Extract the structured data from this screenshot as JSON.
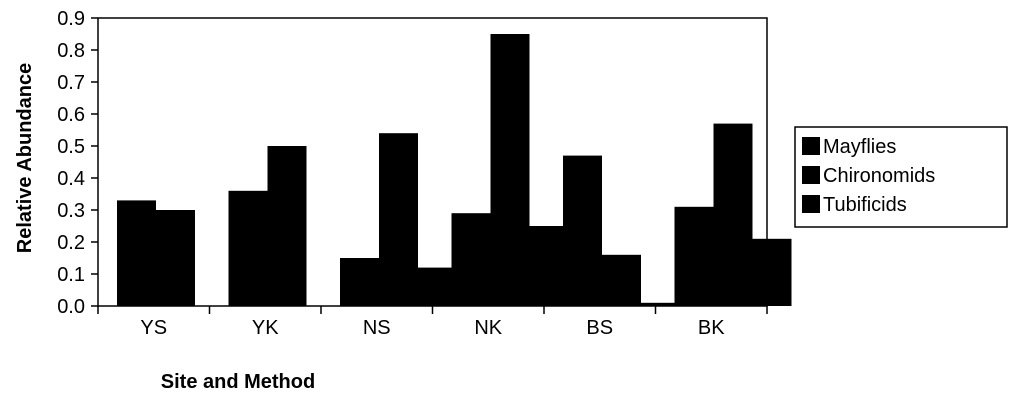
{
  "chart_data": {
    "type": "bar",
    "title": "",
    "xlabel": "Site and Method",
    "ylabel": "Relative Abundance",
    "ylim": [
      0,
      0.9
    ],
    "yticks": [
      "0.0",
      "0.1",
      "0.2",
      "0.3",
      "0.4",
      "0.5",
      "0.6",
      "0.7",
      "0.8",
      "0.9"
    ],
    "categories": [
      "YS",
      "YK",
      "NS",
      "NK",
      "BS",
      "BK"
    ],
    "series": [
      {
        "name": "Mayflies",
        "values": [
          0.33,
          0.36,
          0.15,
          0.29,
          0.47,
          0.31
        ]
      },
      {
        "name": "Chironomids",
        "values": [
          0.3,
          0.5,
          0.54,
          0.85,
          0.16,
          0.57
        ]
      },
      {
        "name": "Tubificids",
        "values": [
          0.0,
          0.0,
          0.12,
          0.25,
          0.01,
          0.21
        ]
      }
    ],
    "legend_position": "right",
    "grid": false,
    "colors": {
      "bars": "#000000",
      "axis": "#000000",
      "background": "#ffffff"
    }
  }
}
